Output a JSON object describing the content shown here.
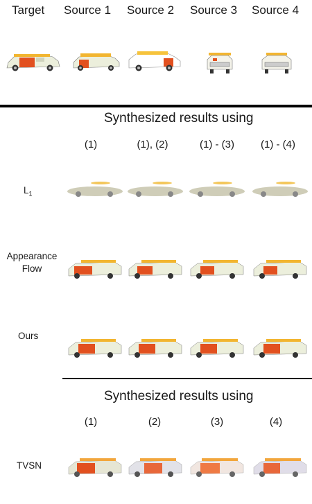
{
  "header": {
    "columns": [
      "Target",
      "Source 1",
      "Source 2",
      "Source 3",
      "Source 4"
    ]
  },
  "section1": {
    "title": "Synthesized results using",
    "column_labels": [
      "(1)",
      "(1), (2)",
      "(1) - (3)",
      "(1) - (4)"
    ],
    "rows": [
      {
        "label_main": "L",
        "label_sub": "1"
      },
      {
        "label_line1": "Appearance",
        "label_line2": "Flow"
      },
      {
        "label": "Ours"
      }
    ]
  },
  "section2": {
    "title": "Synthesized results using",
    "column_labels": [
      "(1)",
      "(2)",
      "(3)",
      "(4)"
    ],
    "rows": [
      {
        "label": "TVSN"
      }
    ]
  },
  "colors": {
    "car_body": "#ecefdc",
    "car_orange": "#e2501f",
    "car_roof": "#f2b530",
    "blur_body": "#cfcdb8",
    "rule": "#000000"
  }
}
